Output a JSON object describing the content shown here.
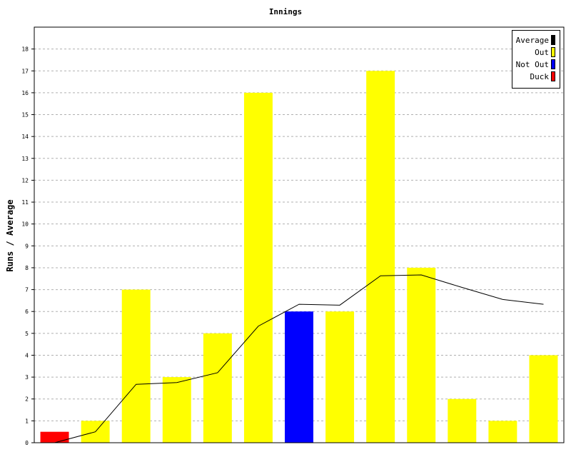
{
  "chart_data": {
    "type": "bar",
    "title": "Innings",
    "ylabel": "Runs / Average",
    "ylim": [
      0,
      19
    ],
    "yticks": [
      0,
      1,
      2,
      3,
      4,
      5,
      6,
      7,
      8,
      9,
      10,
      11,
      12,
      13,
      14,
      15,
      16,
      17,
      18
    ],
    "grid": true,
    "legend_position": "top-right",
    "legend": [
      {
        "label": "Average",
        "color": "#000000"
      },
      {
        "label": "Out",
        "color": "#ffff00"
      },
      {
        "label": "Not Out",
        "color": "#0000ff"
      },
      {
        "label": "Duck",
        "color": "#ff0000"
      }
    ],
    "bars": [
      {
        "value": 0.5,
        "status": "Duck",
        "color": "#ff0000"
      },
      {
        "value": 1,
        "status": "Out",
        "color": "#ffff00"
      },
      {
        "value": 7,
        "status": "Out",
        "color": "#ffff00"
      },
      {
        "value": 3,
        "status": "Out",
        "color": "#ffff00"
      },
      {
        "value": 5,
        "status": "Out",
        "color": "#ffff00"
      },
      {
        "value": 16,
        "status": "Out",
        "color": "#ffff00"
      },
      {
        "value": 6,
        "status": "Not Out",
        "color": "#0000ff"
      },
      {
        "value": 6,
        "status": "Out",
        "color": "#ffff00"
      },
      {
        "value": 17,
        "status": "Out",
        "color": "#ffff00"
      },
      {
        "value": 8,
        "status": "Out",
        "color": "#ffff00"
      },
      {
        "value": 2,
        "status": "Out",
        "color": "#ffff00"
      },
      {
        "value": 1,
        "status": "Out",
        "color": "#ffff00"
      },
      {
        "value": 4,
        "status": "Out",
        "color": "#ffff00"
      }
    ],
    "average": {
      "name": "Average",
      "color": "#000000",
      "values": [
        0,
        0.5,
        2.67,
        2.75,
        3.2,
        5.33,
        6.33,
        6.29,
        7.63,
        7.67,
        7.1,
        6.55,
        6.33
      ]
    }
  }
}
